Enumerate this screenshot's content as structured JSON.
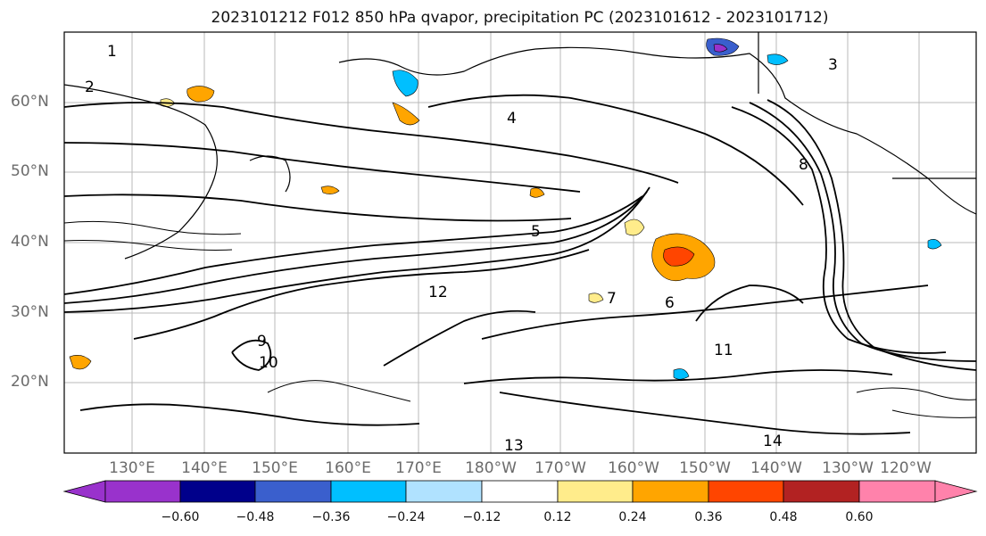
{
  "title": "2023101212 F012 850 hPa qvapor, precipitation PC (2023101612 - 2023101712)",
  "latitude_labels": [
    "60°N",
    "50°N",
    "40°N",
    "30°N",
    "20°N"
  ],
  "longitude_labels": [
    "130°E",
    "140°E",
    "150°E",
    "160°E",
    "170°E",
    "180°W",
    "170°W",
    "160°W",
    "150°W",
    "140°W",
    "130°W",
    "120°W"
  ],
  "contour_labels": [
    "1",
    "2",
    "3",
    "4",
    "5",
    "6",
    "7",
    "8",
    "9",
    "10",
    "11",
    "12",
    "13",
    "14"
  ],
  "colorbar": {
    "tick_labels": [
      "−0.60",
      "−0.48",
      "−0.36",
      "−0.24",
      "−0.12",
      "0.12",
      "0.24",
      "0.36",
      "0.48",
      "0.60"
    ],
    "colors": [
      "#9932cc",
      "#00008b",
      "#3a5fcd",
      "#00bfff",
      "#b0e2ff",
      "#ffffff",
      "#ffec8b",
      "#ffa500",
      "#ff4500",
      "#b22222",
      "#ff82ab"
    ]
  }
}
